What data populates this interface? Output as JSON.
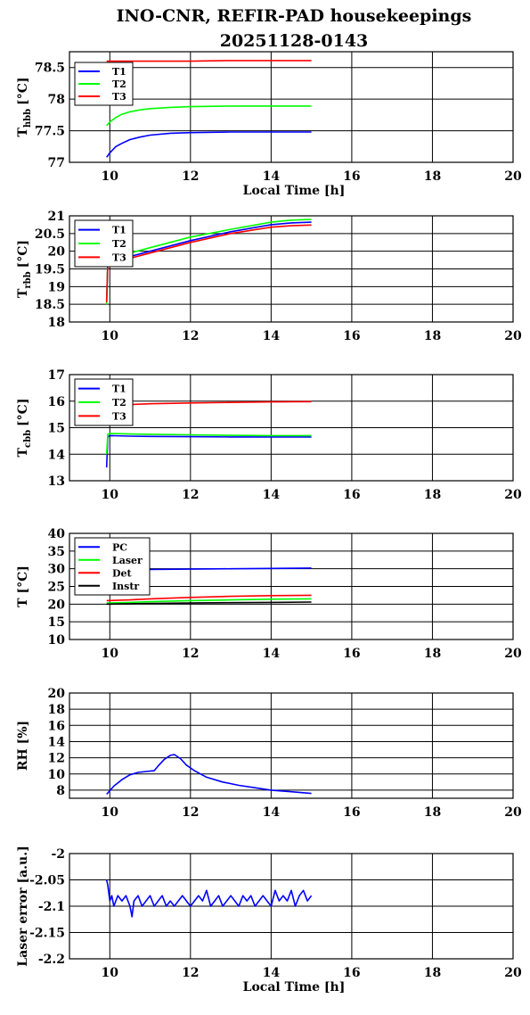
{
  "figure": {
    "title_line1": "INO-CNR, REFIR-PAD housekeepings",
    "title_line2": "20251128-0143"
  },
  "chart_data": [
    {
      "type": "line",
      "ylabel": "T",
      "ylabel_sub": "hbb",
      "ylabel_unit": "[°C]",
      "xlabel": "Local Time [h]",
      "xlim": [
        9,
        20
      ],
      "ylim": [
        77,
        78.75
      ],
      "xticks": [
        10,
        12,
        14,
        16,
        18,
        20
      ],
      "yticks": [
        77,
        77.5,
        78,
        78.5
      ],
      "ytick_labels": [
        "77",
        "77.5",
        "78",
        "78.5"
      ],
      "grid": true,
      "legend": "top-left",
      "series": [
        {
          "name": "T1",
          "color": "#0000ff",
          "x": [
            9.92,
            10.0,
            10.15,
            10.3,
            10.5,
            10.75,
            11.0,
            11.5,
            12.0,
            13.0,
            14.0,
            15.0
          ],
          "y": [
            77.08,
            77.15,
            77.25,
            77.3,
            77.36,
            77.4,
            77.43,
            77.46,
            77.47,
            77.48,
            77.48,
            77.48
          ]
        },
        {
          "name": "T2",
          "color": "#00ff00",
          "x": [
            9.92,
            10.0,
            10.15,
            10.3,
            10.5,
            10.75,
            11.0,
            11.5,
            12.0,
            13.0,
            14.0,
            15.0
          ],
          "y": [
            77.58,
            77.64,
            77.71,
            77.76,
            77.8,
            77.83,
            77.85,
            77.87,
            77.88,
            77.89,
            77.89,
            77.89
          ]
        },
        {
          "name": "T3",
          "color": "#ff0000",
          "x": [
            9.92,
            10.5,
            11.0,
            12.0,
            13.0,
            14.0,
            15.0
          ],
          "y": [
            78.6,
            78.6,
            78.6,
            78.6,
            78.61,
            78.61,
            78.61
          ]
        }
      ]
    },
    {
      "type": "line",
      "ylabel": "T",
      "ylabel_sub": "rbb",
      "ylabel_unit": "[°C]",
      "xlabel": "",
      "xlim": [
        9,
        20
      ],
      "ylim": [
        18,
        21
      ],
      "xticks": [
        10,
        12,
        14,
        16,
        18,
        20
      ],
      "yticks": [
        18,
        18.5,
        19,
        19.5,
        20,
        20.5,
        21
      ],
      "ytick_labels": [
        "18",
        "18.5",
        "19",
        "19.5",
        "20",
        "20.5",
        "21"
      ],
      "grid": true,
      "legend": "top-left",
      "series": [
        {
          "name": "T1",
          "color": "#0000ff",
          "x": [
            9.92,
            9.95,
            10.0,
            10.5,
            11.0,
            12.0,
            13.0,
            14.0,
            14.5,
            15.0
          ],
          "y": [
            18.6,
            19.7,
            19.72,
            19.85,
            20.0,
            20.3,
            20.55,
            20.75,
            20.8,
            20.82
          ]
        },
        {
          "name": "T2",
          "color": "#00ff00",
          "x": [
            9.92,
            9.95,
            10.0,
            10.5,
            11.0,
            12.0,
            13.0,
            14.0,
            14.5,
            15.0
          ],
          "y": [
            18.5,
            19.75,
            19.8,
            19.95,
            20.1,
            20.4,
            20.62,
            20.82,
            20.88,
            20.9
          ]
        },
        {
          "name": "T3",
          "color": "#ff0000",
          "x": [
            9.92,
            9.95,
            10.0,
            10.5,
            11.0,
            12.0,
            13.0,
            14.0,
            14.5,
            15.0
          ],
          "y": [
            18.55,
            19.65,
            19.68,
            19.8,
            19.95,
            20.25,
            20.5,
            20.68,
            20.72,
            20.74
          ]
        }
      ]
    },
    {
      "type": "line",
      "ylabel": "T",
      "ylabel_sub": "cbb",
      "ylabel_unit": "[°C]",
      "xlabel": "",
      "xlim": [
        9,
        20
      ],
      "ylim": [
        13,
        17
      ],
      "xticks": [
        10,
        12,
        14,
        16,
        18,
        20
      ],
      "yticks": [
        13,
        14,
        15,
        16,
        17
      ],
      "ytick_labels": [
        "13",
        "14",
        "15",
        "16",
        "17"
      ],
      "grid": true,
      "legend": "top-left",
      "series": [
        {
          "name": "T1",
          "color": "#0000ff",
          "x": [
            9.92,
            9.95,
            10.0,
            10.5,
            11.0,
            12.0,
            13.0,
            14.0,
            15.0
          ],
          "y": [
            13.5,
            14.65,
            14.7,
            14.68,
            14.67,
            14.66,
            14.65,
            14.65,
            14.65
          ]
        },
        {
          "name": "T2",
          "color": "#00ff00",
          "x": [
            9.92,
            9.95,
            10.0,
            10.5,
            11.0,
            12.0,
            13.0,
            14.0,
            15.0
          ],
          "y": [
            14.0,
            14.75,
            14.78,
            14.76,
            14.75,
            14.73,
            14.71,
            14.7,
            14.7
          ]
        },
        {
          "name": "T3",
          "color": "#ff0000",
          "x": [
            10.0,
            10.5,
            11.0,
            12.0,
            13.0,
            14.0,
            15.0
          ],
          "y": [
            15.85,
            15.87,
            15.9,
            15.93,
            15.95,
            15.97,
            15.98
          ]
        }
      ]
    },
    {
      "type": "line",
      "ylabel": "T [°C]",
      "ylabel_sub": "",
      "ylabel_unit": "",
      "xlabel": "",
      "xlim": [
        9,
        20
      ],
      "ylim": [
        10,
        40
      ],
      "xticks": [
        10,
        12,
        14,
        16,
        18,
        20
      ],
      "yticks": [
        10,
        15,
        20,
        25,
        30,
        35,
        40
      ],
      "ytick_labels": [
        "10",
        "15",
        "20",
        "25",
        "30",
        "35",
        "40"
      ],
      "grid": true,
      "legend": "top-left",
      "series": [
        {
          "name": "PC",
          "color": "#0000ff",
          "x": [
            9.92,
            10.5,
            11.0,
            12.0,
            13.0,
            14.0,
            15.0
          ],
          "y": [
            29.6,
            29.7,
            29.8,
            29.9,
            30.0,
            30.1,
            30.2
          ]
        },
        {
          "name": "Laser",
          "color": "#00ff00",
          "x": [
            9.92,
            10.5,
            11.0,
            12.0,
            13.0,
            14.0,
            15.0
          ],
          "y": [
            20.3,
            20.5,
            20.7,
            21.0,
            21.2,
            21.4,
            21.5
          ]
        },
        {
          "name": "Det",
          "color": "#ff0000",
          "x": [
            9.92,
            10.5,
            11.0,
            12.0,
            13.0,
            14.0,
            15.0
          ],
          "y": [
            21.0,
            21.2,
            21.5,
            21.9,
            22.2,
            22.4,
            22.5
          ]
        },
        {
          "name": "Instr",
          "color": "#000000",
          "x": [
            9.92,
            10.5,
            11.0,
            12.0,
            13.0,
            14.0,
            15.0
          ],
          "y": [
            20.0,
            20.1,
            20.2,
            20.3,
            20.4,
            20.5,
            20.6
          ]
        }
      ]
    },
    {
      "type": "line",
      "ylabel": "RH [%]",
      "ylabel_sub": "",
      "ylabel_unit": "",
      "xlabel": "",
      "xlim": [
        9,
        20
      ],
      "ylim": [
        7,
        20
      ],
      "xticks": [
        10,
        12,
        14,
        16,
        18,
        20
      ],
      "yticks": [
        8,
        10,
        12,
        14,
        16,
        18,
        20
      ],
      "ytick_labels": [
        "8",
        "10",
        "12",
        "14",
        "16",
        "18",
        "20"
      ],
      "grid": true,
      "legend": "none",
      "series": [
        {
          "name": "",
          "color": "#0000ff",
          "x": [
            9.92,
            10.1,
            10.3,
            10.5,
            10.7,
            10.9,
            11.1,
            11.2,
            11.35,
            11.5,
            11.6,
            11.75,
            11.9,
            12.1,
            12.4,
            12.8,
            13.2,
            13.6,
            14.0,
            14.5,
            15.0
          ],
          "y": [
            7.5,
            8.5,
            9.3,
            9.9,
            10.2,
            10.3,
            10.4,
            11.0,
            11.8,
            12.3,
            12.4,
            11.9,
            11.1,
            10.4,
            9.6,
            9.0,
            8.6,
            8.3,
            8.0,
            7.8,
            7.6
          ]
        }
      ]
    },
    {
      "type": "line",
      "ylabel": "Laser error [a.u.]",
      "ylabel_sub": "",
      "ylabel_unit": "",
      "xlabel": "Local Time [h]",
      "xlim": [
        9,
        20
      ],
      "ylim": [
        -2.2,
        -2.0
      ],
      "xticks": [
        10,
        12,
        14,
        16,
        18,
        20
      ],
      "yticks": [
        -2.2,
        -2.15,
        -2.1,
        -2.05,
        -2.0
      ],
      "ytick_labels": [
        "-2.2",
        "-2.15",
        "-2.1",
        "-2.05",
        "-2"
      ],
      "grid": true,
      "legend": "none",
      "series": [
        {
          "name": "",
          "color": "#0000ff",
          "x": [
            9.92,
            9.95,
            10.0,
            10.05,
            10.1,
            10.2,
            10.3,
            10.4,
            10.5,
            10.55,
            10.6,
            10.7,
            10.8,
            10.9,
            11.0,
            11.1,
            11.2,
            11.3,
            11.4,
            11.5,
            11.6,
            11.7,
            11.8,
            11.9,
            12.0,
            12.1,
            12.2,
            12.3,
            12.4,
            12.5,
            12.6,
            12.7,
            12.8,
            12.9,
            13.0,
            13.1,
            13.2,
            13.3,
            13.4,
            13.5,
            13.6,
            13.7,
            13.8,
            13.9,
            14.0,
            14.1,
            14.2,
            14.3,
            14.4,
            14.5,
            14.6,
            14.7,
            14.8,
            14.9,
            15.0
          ],
          "y": [
            -2.05,
            -2.06,
            -2.09,
            -2.08,
            -2.1,
            -2.08,
            -2.09,
            -2.08,
            -2.1,
            -2.12,
            -2.09,
            -2.08,
            -2.1,
            -2.09,
            -2.08,
            -2.1,
            -2.09,
            -2.08,
            -2.1,
            -2.09,
            -2.1,
            -2.09,
            -2.08,
            -2.09,
            -2.1,
            -2.09,
            -2.08,
            -2.09,
            -2.07,
            -2.1,
            -2.09,
            -2.08,
            -2.1,
            -2.09,
            -2.08,
            -2.09,
            -2.1,
            -2.08,
            -2.09,
            -2.08,
            -2.1,
            -2.09,
            -2.08,
            -2.09,
            -2.1,
            -2.07,
            -2.09,
            -2.08,
            -2.09,
            -2.07,
            -2.1,
            -2.08,
            -2.07,
            -2.09,
            -2.08
          ]
        }
      ]
    }
  ]
}
